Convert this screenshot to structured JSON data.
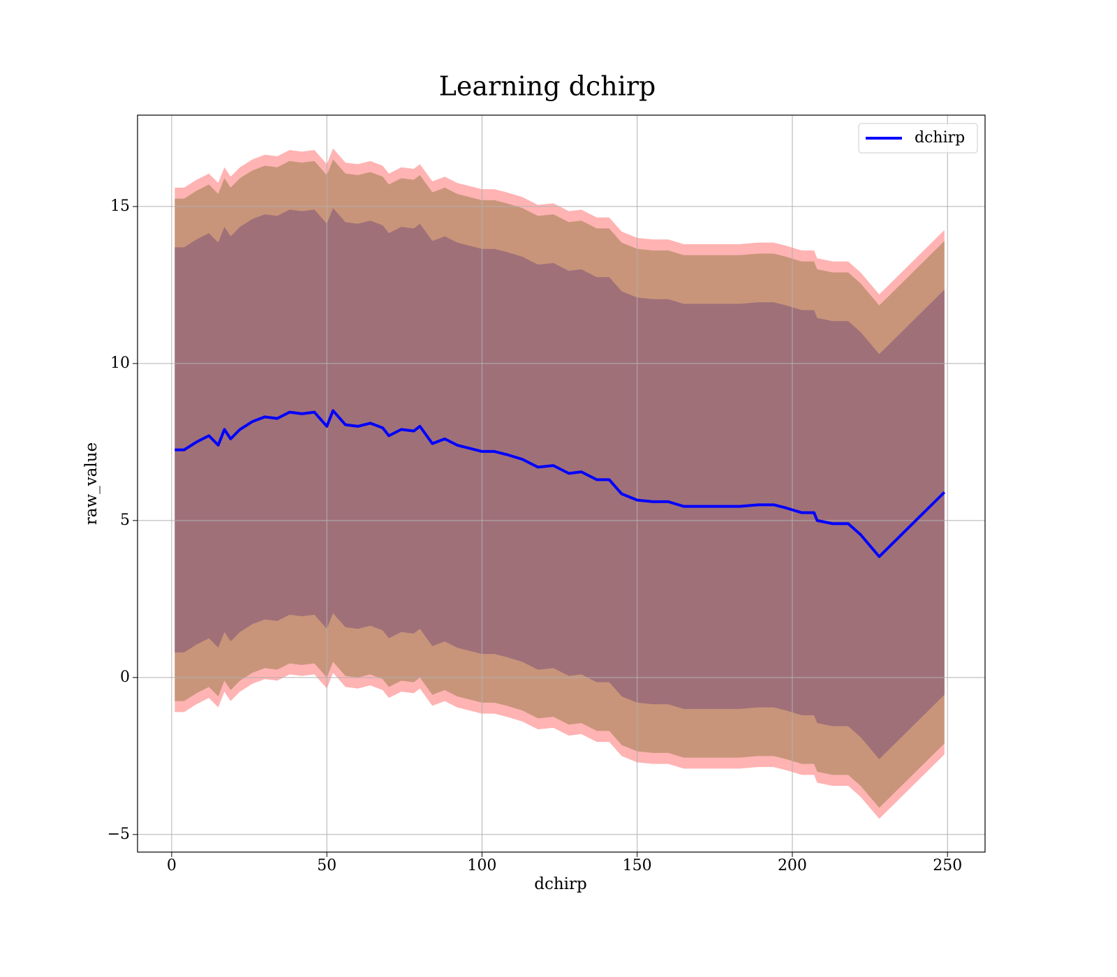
{
  "chart_data": {
    "type": "line",
    "title": "Learning dchirp",
    "xlabel": "dchirp",
    "ylabel": "raw_value",
    "xlim": [
      -11.0,
      262.1
    ],
    "ylim": [
      -5.56,
      17.91
    ],
    "xticks": [
      0,
      50,
      100,
      150,
      200,
      250
    ],
    "yticks": [
      {
        "value": -5,
        "label": "−5"
      },
      0,
      5,
      10,
      15
    ],
    "grid": true,
    "legend": "upper right",
    "x": [
      1,
      4,
      8,
      12,
      15,
      17,
      19,
      22,
      26,
      30,
      34,
      38,
      42,
      46,
      50,
      52,
      56,
      60,
      64,
      68,
      70,
      74,
      78,
      80,
      84,
      88,
      92,
      96,
      100,
      104,
      108,
      113,
      118,
      123,
      128,
      132,
      137,
      141,
      145,
      150,
      155,
      160,
      165,
      171,
      177,
      183,
      189,
      194,
      198,
      203,
      207,
      208,
      213,
      218,
      222,
      228,
      249
    ],
    "series": [
      {
        "name": "dchirp",
        "color": "#0000ff",
        "values": [
          7.25,
          7.25,
          7.5,
          7.7,
          7.4,
          7.9,
          7.6,
          7.9,
          8.15,
          8.3,
          8.25,
          8.45,
          8.4,
          8.45,
          8.0,
          8.5,
          8.05,
          8.0,
          8.1,
          7.95,
          7.7,
          7.9,
          7.85,
          8.0,
          7.45,
          7.6,
          7.4,
          7.3,
          7.2,
          7.2,
          7.1,
          6.95,
          6.7,
          6.75,
          6.5,
          6.55,
          6.3,
          6.3,
          5.85,
          5.65,
          5.6,
          5.6,
          5.45,
          5.45,
          5.45,
          5.45,
          5.5,
          5.5,
          5.4,
          5.25,
          5.25,
          5.0,
          4.9,
          4.9,
          4.55,
          3.85,
          5.9
        ]
      }
    ],
    "bands": [
      {
        "color": "#ffb3b3",
        "upper": [
          15.6,
          15.6,
          15.85,
          16.05,
          15.75,
          16.25,
          15.95,
          16.25,
          16.5,
          16.65,
          16.6,
          16.8,
          16.75,
          16.8,
          16.35,
          16.85,
          16.4,
          16.35,
          16.45,
          16.3,
          16.05,
          16.25,
          16.2,
          16.35,
          15.8,
          15.95,
          15.75,
          15.65,
          15.55,
          15.55,
          15.45,
          15.3,
          15.05,
          15.1,
          14.85,
          14.9,
          14.65,
          14.65,
          14.2,
          14.0,
          13.95,
          13.95,
          13.8,
          13.8,
          13.8,
          13.8,
          13.85,
          13.85,
          13.75,
          13.6,
          13.6,
          13.35,
          13.25,
          13.25,
          12.9,
          12.2,
          14.25
        ],
        "lower": [
          -1.1,
          -1.1,
          -0.85,
          -0.65,
          -0.95,
          -0.45,
          -0.75,
          -0.45,
          -0.2,
          -0.05,
          -0.1,
          0.1,
          0.05,
          0.1,
          -0.35,
          0.15,
          -0.3,
          -0.35,
          -0.25,
          -0.4,
          -0.65,
          -0.45,
          -0.5,
          -0.35,
          -0.9,
          -0.75,
          -0.95,
          -1.05,
          -1.15,
          -1.15,
          -1.25,
          -1.4,
          -1.65,
          -1.6,
          -1.85,
          -1.8,
          -2.05,
          -2.05,
          -2.5,
          -2.7,
          -2.75,
          -2.75,
          -2.9,
          -2.9,
          -2.9,
          -2.9,
          -2.85,
          -2.85,
          -2.95,
          -3.1,
          -3.1,
          -3.35,
          -3.45,
          -3.45,
          -3.8,
          -4.5,
          -2.45
        ]
      },
      {
        "color": "#c8957a",
        "upper": [
          15.25,
          15.25,
          15.5,
          15.7,
          15.4,
          15.9,
          15.6,
          15.9,
          16.15,
          16.3,
          16.25,
          16.45,
          16.4,
          16.45,
          16.0,
          16.5,
          16.05,
          16.0,
          16.1,
          15.95,
          15.7,
          15.9,
          15.85,
          16.0,
          15.45,
          15.6,
          15.4,
          15.3,
          15.2,
          15.2,
          15.1,
          14.95,
          14.7,
          14.75,
          14.5,
          14.55,
          14.3,
          14.3,
          13.85,
          13.65,
          13.6,
          13.6,
          13.45,
          13.45,
          13.45,
          13.45,
          13.5,
          13.5,
          13.4,
          13.25,
          13.25,
          13.0,
          12.9,
          12.9,
          12.55,
          11.85,
          13.9
        ],
        "lower": [
          -0.75,
          -0.75,
          -0.5,
          -0.3,
          -0.6,
          -0.1,
          -0.4,
          -0.1,
          0.15,
          0.3,
          0.25,
          0.45,
          0.4,
          0.45,
          0.0,
          0.5,
          0.05,
          0.0,
          0.1,
          -0.05,
          -0.3,
          -0.1,
          -0.15,
          0.0,
          -0.55,
          -0.4,
          -0.6,
          -0.7,
          -0.8,
          -0.8,
          -0.9,
          -1.05,
          -1.3,
          -1.25,
          -1.5,
          -1.45,
          -1.7,
          -1.7,
          -2.15,
          -2.35,
          -2.4,
          -2.4,
          -2.55,
          -2.55,
          -2.55,
          -2.55,
          -2.5,
          -2.5,
          -2.6,
          -2.75,
          -2.75,
          -3.0,
          -3.1,
          -3.1,
          -3.45,
          -4.15,
          -2.1
        ]
      },
      {
        "color": "#a07079",
        "upper": [
          13.7,
          13.7,
          13.95,
          14.15,
          13.85,
          14.35,
          14.05,
          14.35,
          14.6,
          14.75,
          14.7,
          14.9,
          14.85,
          14.9,
          14.45,
          14.95,
          14.5,
          14.45,
          14.55,
          14.4,
          14.15,
          14.35,
          14.3,
          14.45,
          13.9,
          14.05,
          13.85,
          13.75,
          13.65,
          13.65,
          13.55,
          13.4,
          13.15,
          13.2,
          12.95,
          13.0,
          12.75,
          12.75,
          12.3,
          12.1,
          12.05,
          12.05,
          11.9,
          11.9,
          11.9,
          11.9,
          11.95,
          11.95,
          11.85,
          11.7,
          11.7,
          11.45,
          11.35,
          11.35,
          11.0,
          10.3,
          12.35
        ],
        "lower": [
          0.8,
          0.8,
          1.05,
          1.25,
          0.95,
          1.45,
          1.15,
          1.45,
          1.7,
          1.85,
          1.8,
          2.0,
          1.95,
          2.0,
          1.55,
          2.05,
          1.6,
          1.55,
          1.65,
          1.5,
          1.25,
          1.45,
          1.4,
          1.55,
          1.0,
          1.15,
          0.95,
          0.85,
          0.75,
          0.75,
          0.65,
          0.5,
          0.25,
          0.3,
          0.05,
          0.1,
          -0.15,
          -0.15,
          -0.6,
          -0.8,
          -0.85,
          -0.85,
          -1.0,
          -1.0,
          -1.0,
          -1.0,
          -0.95,
          -0.95,
          -1.05,
          -1.2,
          -1.2,
          -1.45,
          -1.55,
          -1.55,
          -1.9,
          -2.6,
          -0.55
        ]
      }
    ]
  }
}
